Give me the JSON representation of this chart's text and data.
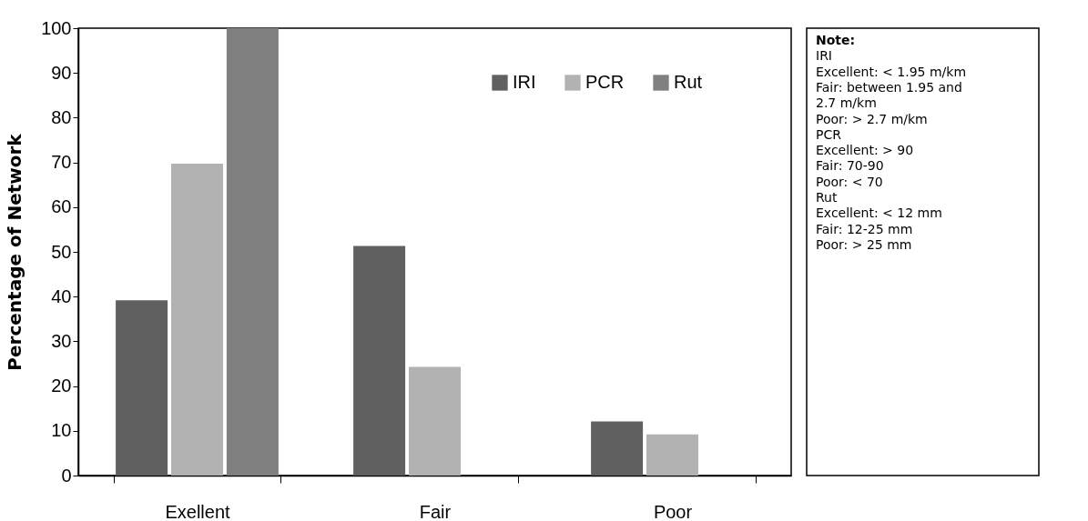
{
  "chart_data": {
    "type": "bar",
    "ylabel": "Percentage of Network",
    "categories": [
      "Exellent",
      "Fair",
      "Poor"
    ],
    "series": [
      {
        "name": "IRI",
        "color": "#606060",
        "values": [
          39.2,
          51.3,
          12.1
        ]
      },
      {
        "name": "PCR",
        "color": "#b2b2b2",
        "values": [
          69.7,
          24.3,
          9.2
        ]
      },
      {
        "name": "Rut",
        "color": "#808080",
        "values": [
          100,
          0,
          0
        ]
      }
    ],
    "ylim": [
      0,
      100
    ],
    "yticks": [
      0,
      10,
      20,
      30,
      40,
      50,
      60,
      70,
      80,
      90,
      100
    ],
    "grid": false,
    "legend": "top right",
    "annotations": [
      "Note:",
      "IRI",
      "Excellent: < 1.95 m/km",
      "Fair: between 1.95 and",
      "2.7 m/km",
      "Poor: > 2.7 m/km",
      "PCR",
      "Excellent: > 90",
      "Fair: 70-90",
      "Poor: < 70",
      "Rut",
      "Excellent: < 12 mm",
      "Fair: 12-25 mm",
      "Poor: > 25 mm"
    ]
  }
}
